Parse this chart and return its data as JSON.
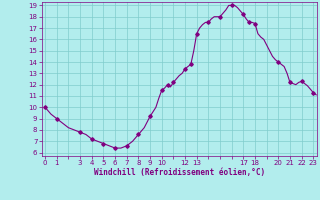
{
  "hours_dense": [
    0,
    0.25,
    0.5,
    0.75,
    1,
    1.25,
    1.5,
    1.75,
    2,
    2.25,
    2.5,
    2.75,
    3,
    3.25,
    3.5,
    3.75,
    4,
    4.25,
    4.5,
    4.75,
    5,
    5.25,
    5.5,
    5.75,
    6,
    6.25,
    6.5,
    6.75,
    7,
    7.25,
    7.5,
    7.75,
    8,
    8.25,
    8.5,
    8.75,
    9,
    9.25,
    9.5,
    9.75,
    10,
    10.25,
    10.5,
    10.75,
    11,
    11.25,
    11.5,
    11.75,
    12,
    12.25,
    12.5,
    12.75,
    13,
    13.25,
    13.5,
    13.75,
    14,
    14.25,
    14.5,
    14.75,
    15,
    15.25,
    15.5,
    15.75,
    16,
    16.25,
    16.5,
    16.75,
    17,
    17.25,
    17.5,
    17.75,
    18,
    18.25,
    18.5,
    18.75,
    19,
    19.25,
    19.5,
    19.75,
    20,
    20.25,
    20.5,
    20.75,
    21,
    21.25,
    21.5,
    21.75,
    22,
    22.25,
    22.5,
    22.75,
    23,
    23.25
  ],
  "values_dense": [
    10.0,
    9.7,
    9.4,
    9.2,
    9.0,
    8.8,
    8.6,
    8.4,
    8.2,
    8.1,
    8.0,
    7.9,
    7.8,
    7.7,
    7.6,
    7.4,
    7.2,
    7.1,
    7.0,
    6.9,
    6.8,
    6.7,
    6.6,
    6.5,
    6.4,
    6.4,
    6.4,
    6.5,
    6.6,
    6.8,
    7.0,
    7.3,
    7.6,
    7.9,
    8.2,
    8.7,
    9.2,
    9.6,
    10.0,
    10.8,
    11.5,
    11.7,
    12.0,
    11.8,
    12.2,
    12.5,
    12.8,
    13.0,
    13.4,
    13.6,
    13.8,
    15.0,
    16.5,
    17.0,
    17.3,
    17.5,
    17.5,
    17.8,
    18.0,
    18.0,
    18.0,
    18.3,
    18.6,
    19.0,
    19.0,
    19.0,
    18.8,
    18.5,
    18.2,
    17.8,
    17.5,
    17.5,
    17.4,
    16.5,
    16.2,
    16.0,
    15.5,
    15.0,
    14.5,
    14.2,
    14.0,
    13.8,
    13.6,
    13.0,
    12.2,
    12.1,
    12.0,
    12.2,
    12.3,
    12.1,
    11.9,
    11.6,
    11.3,
    11.1
  ],
  "marker_x": [
    0,
    1,
    3,
    4,
    5,
    6,
    7,
    8,
    9,
    10,
    10.5,
    11,
    12,
    12.5,
    13,
    14,
    15,
    16,
    17,
    17.5,
    18,
    20,
    21,
    22,
    23
  ],
  "marker_y": [
    10.0,
    9.0,
    7.8,
    7.2,
    6.8,
    6.4,
    6.6,
    7.6,
    9.2,
    11.5,
    12.0,
    12.2,
    13.4,
    13.8,
    16.5,
    17.5,
    18.0,
    19.0,
    18.2,
    17.5,
    17.4,
    14.0,
    12.2,
    12.3,
    11.3
  ],
  "line_color": "#800080",
  "marker_color": "#800080",
  "bg_color": "#b2eded",
  "grid_color": "#80cccc",
  "xlabel": "Windchill (Refroidissement éolien,°C)",
  "xlabel_color": "#800080",
  "tick_color": "#800080",
  "ylim": [
    6,
    19
  ],
  "xlim": [
    0,
    23
  ],
  "yticks": [
    6,
    7,
    8,
    9,
    10,
    11,
    12,
    13,
    14,
    15,
    16,
    17,
    18,
    19
  ],
  "xticks": [
    0,
    1,
    2,
    3,
    4,
    5,
    6,
    7,
    8,
    9,
    10,
    11,
    12,
    13,
    14,
    15,
    16,
    17,
    18,
    19,
    20,
    21,
    22,
    23
  ],
  "xtick_labels": [
    "0",
    "1",
    "",
    "3",
    "4",
    "5",
    "6",
    "7",
    "8",
    "9",
    "10",
    "",
    "12",
    "13",
    "",
    "",
    "",
    "17",
    "18",
    "",
    "20",
    "21",
    "22",
    "23"
  ]
}
